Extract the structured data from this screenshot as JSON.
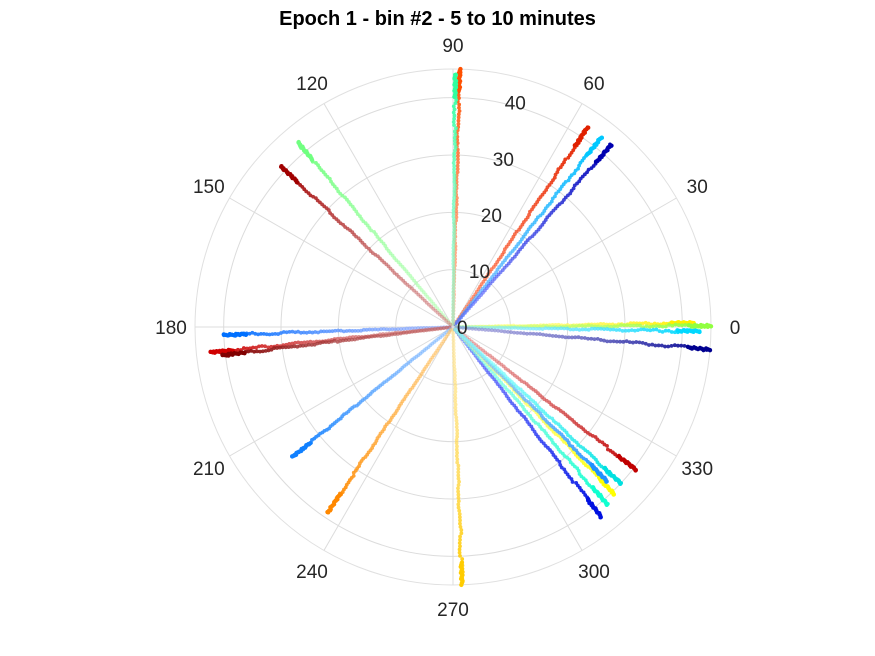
{
  "chart_data": {
    "type": "scatter",
    "projection": "polar",
    "title": "Epoch 1 - bin #2 - 5 to 10 minutes",
    "theta_ticks": [
      "0",
      "30",
      "60",
      "90",
      "120",
      "150",
      "180",
      "210",
      "240",
      "270",
      "300",
      "330"
    ],
    "r_ticks": [
      "0",
      "10",
      "20",
      "30",
      "40"
    ],
    "r_lim": [
      0,
      45
    ],
    "grid": true,
    "colormap": "jet",
    "series": [
      {
        "theta": 56,
        "r_max": 42,
        "color_from": "#ff5a2a",
        "color_to": "#e02000"
      },
      {
        "theta": 52,
        "r_max": 42,
        "color_from": "#4aa8ff",
        "color_to": "#00c8ff"
      },
      {
        "theta": 49,
        "r_max": 42,
        "color_from": "#5060ff",
        "color_to": "#0000b0"
      },
      {
        "theta": 88.5,
        "r_max": 45,
        "color_from": "#ff9060",
        "color_to": "#ff5000"
      },
      {
        "theta": 89.5,
        "r_max": 44,
        "color_from": "#90ffd0",
        "color_to": "#30ffa0"
      },
      {
        "theta": 130,
        "r_max": 42,
        "color_from": "#b0ffb0",
        "color_to": "#70ff80"
      },
      {
        "theta": 137,
        "r_max": 41,
        "color_from": "#d08080",
        "color_to": "#a00000"
      },
      {
        "theta": 1,
        "r_max": 42,
        "color_from": "#ffff80",
        "color_to": "#ffee00"
      },
      {
        "theta": 0.3,
        "r_max": 45,
        "color_from": "#ccff80",
        "color_to": "#90ff40"
      },
      {
        "theta": -1,
        "r_max": 43,
        "color_from": "#80eaff",
        "color_to": "#00d8ff"
      },
      {
        "theta": -5,
        "r_max": 45,
        "color_from": "#8080d0",
        "color_to": "#000090"
      },
      {
        "theta": 182,
        "r_max": 40,
        "color_from": "#80a0ff",
        "color_to": "#0070ff"
      },
      {
        "theta": 186,
        "r_max": 42.5,
        "color_from": "#d08080",
        "color_to": "#d00000"
      },
      {
        "theta": 187,
        "r_max": 40.5,
        "color_from": "#c06060",
        "color_to": "#800000"
      },
      {
        "theta": 219,
        "r_max": 36,
        "color_from": "#80b8ff",
        "color_to": "#1080ff"
      },
      {
        "theta": 236,
        "r_max": 39,
        "color_from": "#ffc060",
        "color_to": "#ff8800"
      },
      {
        "theta": 272,
        "r_max": 45,
        "color_from": "#ffe080",
        "color_to": "#ffcc00"
      },
      {
        "theta": 308,
        "r_max": 42,
        "color_from": "#4050ff",
        "color_to": "#0010e0"
      },
      {
        "theta": 311,
        "r_max": 41,
        "color_from": "#80ffe0",
        "color_to": "#10ffd0"
      },
      {
        "theta": 314,
        "r_max": 40.5,
        "color_from": "#ffff80",
        "color_to": "#ffff00"
      },
      {
        "theta": 322,
        "r_max": 40.5,
        "color_from": "#e08080",
        "color_to": "#c00000"
      },
      {
        "theta": 315,
        "r_max": 38,
        "color_from": "#80c0ff",
        "color_to": "#2090ff"
      },
      {
        "theta": 317,
        "r_max": 40,
        "color_from": "#80ffff",
        "color_to": "#00e0e0"
      }
    ]
  }
}
